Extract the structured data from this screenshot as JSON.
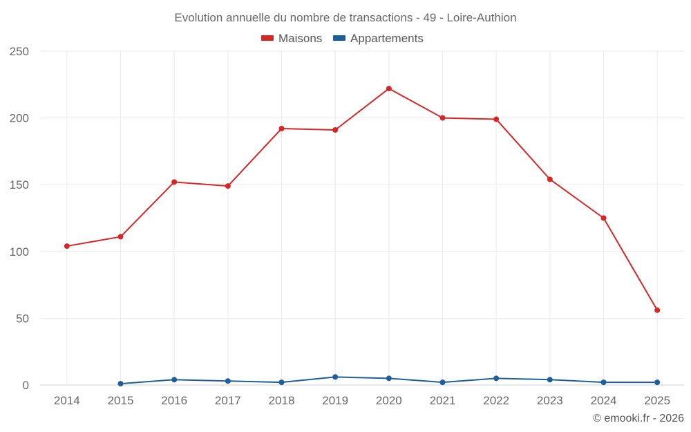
{
  "chart_data": {
    "type": "line",
    "title": "Evolution annuelle du nombre de transactions - 49 - Loire-Authion",
    "xlabel": "",
    "ylabel": "",
    "categories": [
      "2014",
      "2015",
      "2016",
      "2017",
      "2018",
      "2019",
      "2020",
      "2021",
      "2022",
      "2023",
      "2024",
      "2025"
    ],
    "ylim": [
      0,
      250
    ],
    "yticks": [
      "0",
      "50",
      "100",
      "150",
      "200",
      "250"
    ],
    "grid": true,
    "legend_position": "top-center",
    "series": [
      {
        "name": "Maisons",
        "color": "#d62728",
        "values": [
          104,
          111,
          152,
          149,
          192,
          191,
          222,
          200,
          199,
          154,
          125,
          56
        ]
      },
      {
        "name": "Appartements",
        "color": "#1f5f99",
        "values": [
          null,
          1,
          4,
          3,
          2,
          6,
          5,
          2,
          5,
          4,
          2,
          2
        ]
      }
    ],
    "credit": "© emooki.fr - 2026"
  }
}
